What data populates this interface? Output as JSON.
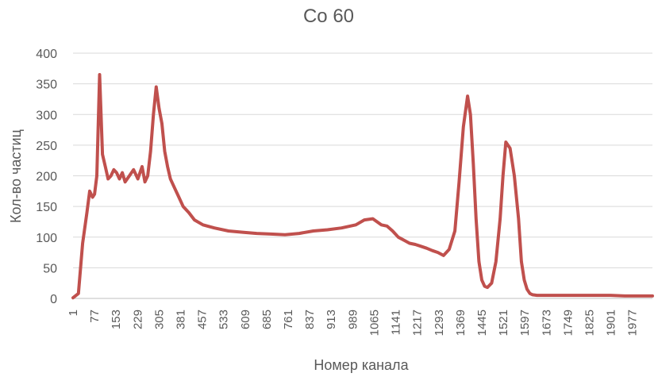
{
  "chart_data": {
    "type": "line",
    "title": "Co 60",
    "xlabel": "Номер канала",
    "ylabel": "Кол-во частиц",
    "ylim": [
      0,
      400
    ],
    "yticks": [
      0,
      50,
      100,
      150,
      200,
      250,
      300,
      350,
      400
    ],
    "xlim": [
      1,
      2048
    ],
    "xticks": [
      1,
      77,
      153,
      229,
      305,
      381,
      457,
      533,
      609,
      685,
      761,
      837,
      913,
      989,
      1065,
      1141,
      1217,
      1293,
      1369,
      1445,
      1521,
      1597,
      1673,
      1749,
      1825,
      1901,
      1977
    ],
    "grid": "horizontal",
    "line_color": "#c0504d",
    "series": [
      {
        "x": [
          1,
          20,
          35,
          50,
          60,
          70,
          77,
          85,
          95,
          105,
          115,
          125,
          135,
          145,
          155,
          165,
          175,
          185,
          200,
          215,
          230,
          245,
          255,
          265,
          275,
          285,
          295,
          305,
          315,
          325,
          335,
          345,
          360,
          375,
          390,
          410,
          430,
          460,
          500,
          550,
          600,
          650,
          700,
          750,
          800,
          850,
          900,
          950,
          1000,
          1030,
          1060,
          1090,
          1110,
          1130,
          1150,
          1170,
          1190,
          1210,
          1230,
          1250,
          1270,
          1290,
          1310,
          1330,
          1350,
          1365,
          1380,
          1395,
          1405,
          1415,
          1425,
          1435,
          1445,
          1455,
          1465,
          1480,
          1495,
          1510,
          1520,
          1530,
          1545,
          1560,
          1575,
          1585,
          1595,
          1605,
          1615,
          1625,
          1640,
          1655,
          1670,
          1690,
          1720,
          1760,
          1800,
          1850,
          1900,
          1950,
          2000,
          2048
        ],
        "values": [
          1,
          8,
          90,
          140,
          175,
          165,
          170,
          200,
          365,
          235,
          215,
          195,
          200,
          210,
          205,
          195,
          205,
          190,
          200,
          210,
          195,
          215,
          190,
          200,
          240,
          300,
          345,
          310,
          285,
          240,
          215,
          195,
          180,
          165,
          150,
          140,
          128,
          120,
          115,
          110,
          108,
          106,
          105,
          104,
          106,
          110,
          112,
          115,
          120,
          128,
          130,
          120,
          118,
          110,
          100,
          95,
          90,
          88,
          85,
          82,
          78,
          75,
          70,
          80,
          110,
          190,
          280,
          330,
          300,
          220,
          130,
          60,
          30,
          20,
          18,
          25,
          60,
          130,
          200,
          255,
          245,
          200,
          130,
          60,
          30,
          15,
          8,
          6,
          5,
          5,
          5,
          5,
          5,
          5,
          5,
          5,
          5,
          4,
          4,
          4
        ]
      }
    ]
  }
}
